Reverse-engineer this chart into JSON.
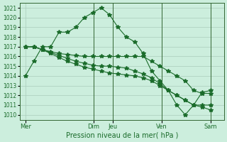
{
  "bg_color": "#cceedd",
  "grid_color": "#aaccbb",
  "line_color": "#1a6b2a",
  "marker": "*",
  "marker_size": 4,
  "ylim": [
    1009.5,
    1021.5
  ],
  "yticks": [
    1010,
    1011,
    1012,
    1013,
    1014,
    1015,
    1016,
    1017,
    1018,
    1019,
    1020,
    1021
  ],
  "xlabel": "Pression niveau de la mer( hPa )",
  "xtick_labels": [
    "Mer",
    "Dim",
    "Jeu",
    "Ven",
    "Sam"
  ],
  "xtick_positions": [
    0,
    3.5,
    4.5,
    7,
    9.5
  ],
  "lines": [
    [
      1014.0,
      1015.5,
      1017.0,
      1017.0,
      1018.5,
      1018.5,
      1019.0,
      1020.0,
      1020.5,
      1021.0,
      1020.3,
      1019.0,
      1018.0,
      1017.5,
      1016.3,
      1014.5,
      1013.5,
      1012.5,
      1011.0,
      1010.0,
      1011.0,
      1012.3,
      1012.5
    ],
    [
      1017.0,
      1017.0,
      1016.7,
      1016.5,
      1016.3,
      1016.2,
      1016.1,
      1016.0,
      1016.0,
      1016.0,
      1016.0,
      1016.0,
      1016.0,
      1016.0,
      1016.0,
      1015.5,
      1015.0,
      1014.5,
      1014.0,
      1013.5,
      1012.5,
      1012.2,
      1012.2
    ],
    [
      1017.0,
      1017.0,
      1016.7,
      1016.4,
      1016.1,
      1015.8,
      1015.5,
      1015.3,
      1015.1,
      1015.0,
      1015.0,
      1014.9,
      1014.8,
      1014.5,
      1014.2,
      1013.8,
      1013.2,
      1012.5,
      1012.0,
      1011.5,
      1011.0,
      1011.0,
      1011.0
    ],
    [
      1017.0,
      1017.0,
      1016.7,
      1016.3,
      1015.9,
      1015.5,
      1015.2,
      1014.9,
      1014.7,
      1014.5,
      1014.3,
      1014.2,
      1014.1,
      1014.0,
      1013.8,
      1013.5,
      1013.0,
      1012.5,
      1012.0,
      1011.5,
      1011.0,
      1010.8,
      1010.5
    ]
  ],
  "vline_positions": [
    3.5,
    4.5,
    7.0,
    9.5
  ],
  "vline_color": "#336633",
  "figsize": [
    3.2,
    2.0
  ],
  "dpi": 100
}
